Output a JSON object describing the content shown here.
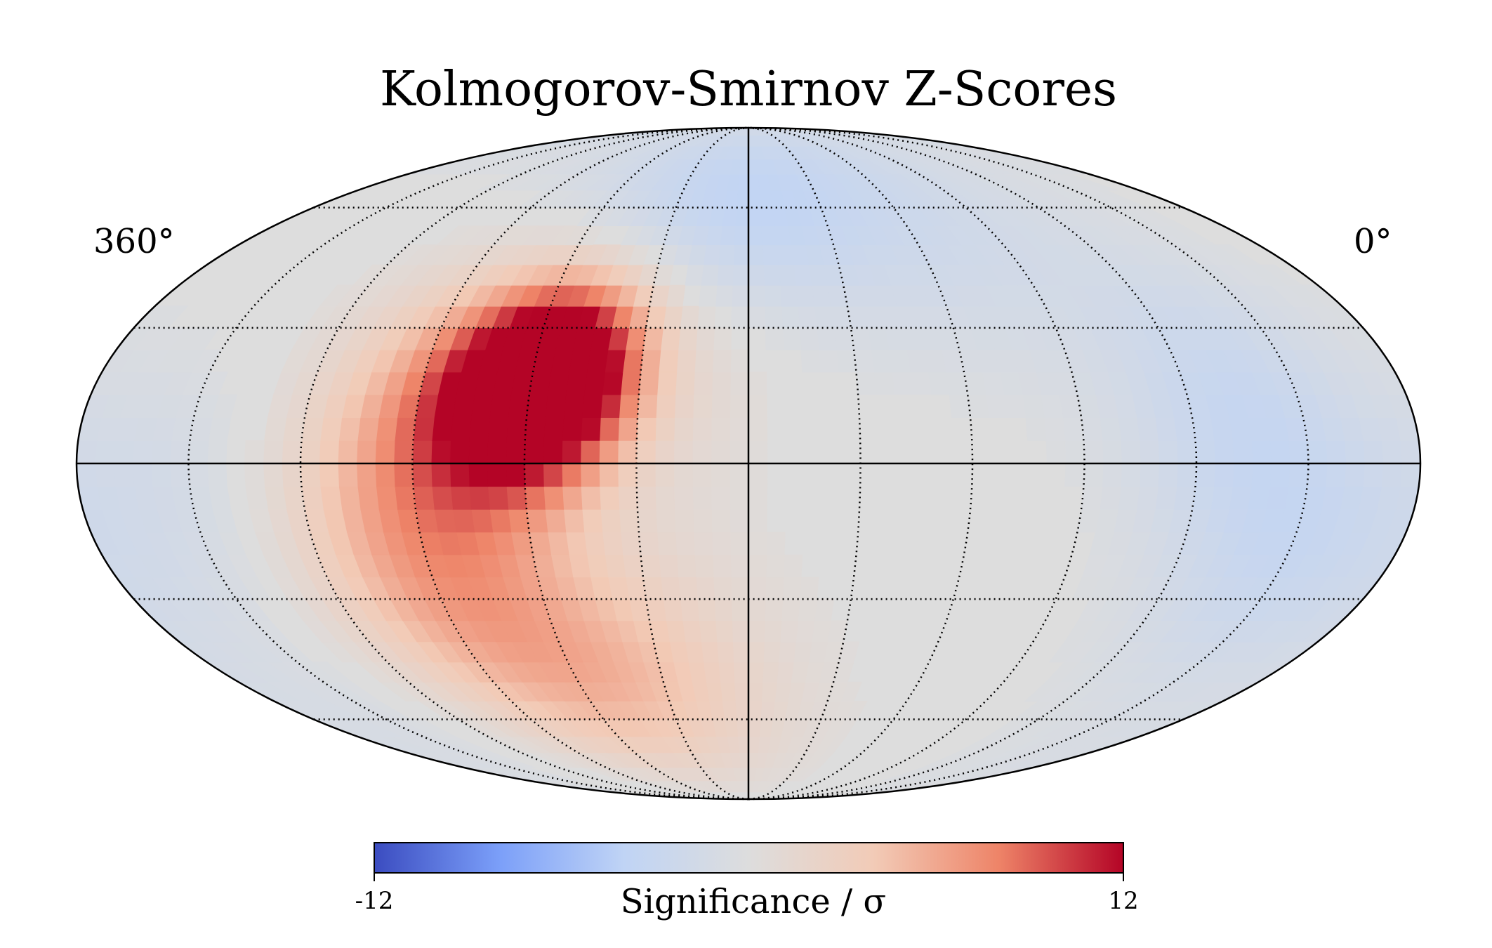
{
  "chart_data": {
    "type": "heatmap",
    "projection": "mollweide",
    "title": "Kolmogorov-Smirnov Z-Scores",
    "lon_labels": {
      "left": "360°",
      "right": "0°"
    },
    "colorbar": {
      "label": "Significance / σ",
      "min": -12,
      "max": 12,
      "min_label": "-12",
      "max_label": "12",
      "colormap": "coolwarm",
      "stops": [
        "#3b4cc0",
        "#7b9ff9",
        "#c0d4f5",
        "#dddddd",
        "#f2cbb7",
        "#ee8468",
        "#b40426"
      ]
    },
    "graticule": {
      "meridians_deg": [
        0,
        30,
        60,
        90,
        120,
        150,
        180,
        210,
        240,
        270,
        300,
        330,
        360
      ],
      "parallels_deg": [
        -60,
        -30,
        30,
        60
      ],
      "solid": [
        "equator",
        "lon 180"
      ]
    },
    "features": [
      {
        "lon": 230,
        "lat": 20,
        "z": 12
      },
      {
        "lon": 245,
        "lat": 15,
        "z": 9
      },
      {
        "lon": 260,
        "lat": 10,
        "z": 6.5
      },
      {
        "lon": 275,
        "lat": -20,
        "z": 4
      },
      {
        "lon": 250,
        "lat": -45,
        "z": 3.5
      },
      {
        "lon": 215,
        "lat": -50,
        "z": 3
      },
      {
        "lon": 200,
        "lat": 35,
        "z": 3
      },
      {
        "lon": 190,
        "lat": 55,
        "z": -5
      },
      {
        "lon": 50,
        "lat": 15,
        "z": -2.5
      },
      {
        "lon": 30,
        "lat": -20,
        "z": -2.5
      },
      {
        "lon": 110,
        "lat": 50,
        "z": -1.5
      },
      {
        "lon": 340,
        "lat": -10,
        "z": -1.5
      },
      {
        "lon": 300,
        "lat": -70,
        "z": -1.5
      }
    ]
  }
}
